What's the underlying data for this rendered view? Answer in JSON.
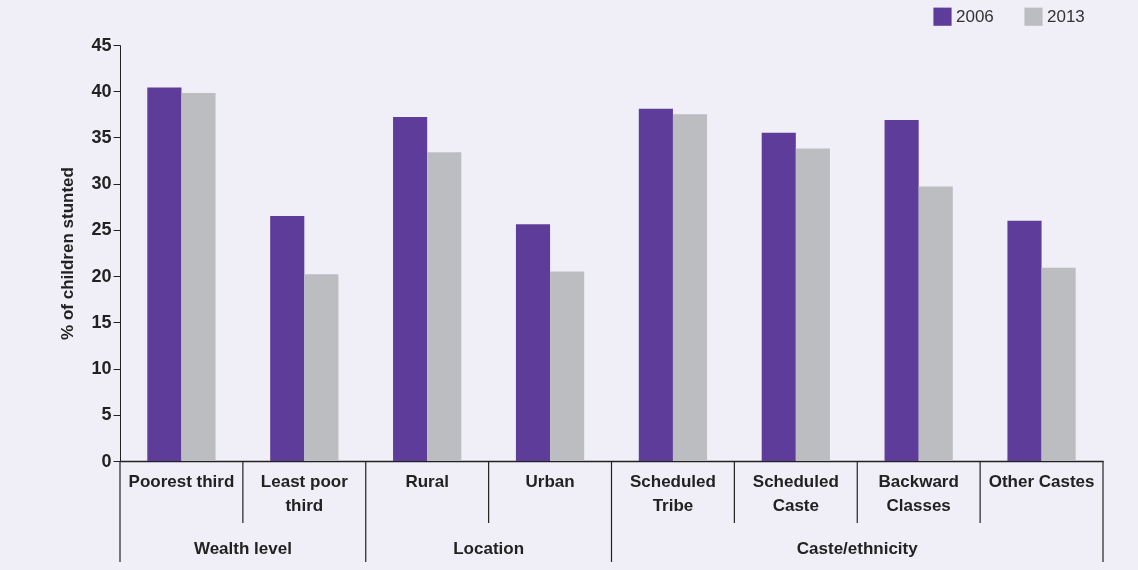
{
  "chart_data": {
    "type": "bar",
    "categories": [
      "Poorest third",
      "Least poor third",
      "Rural",
      "Urban",
      "Scheduled Tribe",
      "Scheduled Caste",
      "Backward Classes",
      "Other Castes"
    ],
    "series": [
      {
        "name": "2006",
        "color": "#5e3c99",
        "values": [
          40.4,
          26.5,
          37.2,
          25.6,
          38.1,
          35.5,
          36.9,
          26.0
        ]
      },
      {
        "name": "2013",
        "color": "#bcbdc1",
        "values": [
          39.8,
          20.2,
          33.4,
          20.5,
          37.5,
          33.8,
          29.7,
          20.9
        ]
      }
    ],
    "ylabel": "% of children stunted",
    "ylim": [
      0,
      45
    ],
    "yticks": [
      0,
      5,
      10,
      15,
      20,
      25,
      30,
      35,
      40,
      45
    ],
    "annotations": [
      "Wealth level",
      "Location",
      "Caste/ethnicity"
    ],
    "legend": "top right",
    "grid": false
  }
}
